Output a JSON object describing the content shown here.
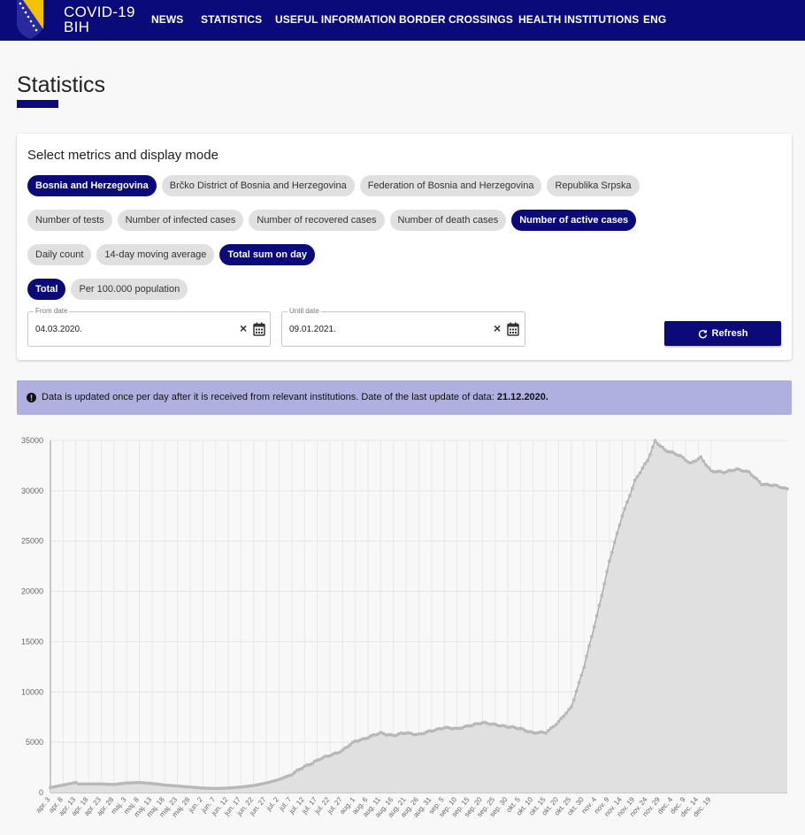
{
  "brand": {
    "line1": "COVID-19",
    "line2": "BIH"
  },
  "nav": [
    "NEWS",
    "STATISTICS",
    "USEFUL INFORMATION",
    "BORDER CROSSINGS",
    "HEALTH INSTITUTIONS",
    "ENG"
  ],
  "page": {
    "title": "Statistics"
  },
  "filters": {
    "title": "Select metrics and display mode",
    "regions": [
      {
        "label": "Bosnia and Herzegovina",
        "active": true
      },
      {
        "label": "Brčko District of Bosnia and Herzegovina",
        "active": false
      },
      {
        "label": "Federation of Bosnia and Herzegovina",
        "active": false
      },
      {
        "label": "Republika Srpska",
        "active": false
      }
    ],
    "metrics": [
      {
        "label": "Number of tests",
        "active": false
      },
      {
        "label": "Number of infected cases",
        "active": false
      },
      {
        "label": "Number of recovered cases",
        "active": false
      },
      {
        "label": "Number of death cases",
        "active": false
      },
      {
        "label": "Number of active cases",
        "active": true
      }
    ],
    "modes": [
      {
        "label": "Daily count",
        "active": false
      },
      {
        "label": "14-day moving average",
        "active": false
      },
      {
        "label": "Total sum on day",
        "active": true
      }
    ],
    "scales": [
      {
        "label": "Total",
        "active": true
      },
      {
        "label": "Per 100.000 population",
        "active": false
      }
    ],
    "from": {
      "label": "From date",
      "value": "04.03.2020."
    },
    "until": {
      "label": "Until date",
      "value": "09.01.2021."
    },
    "refresh_label": "Refresh"
  },
  "notice": {
    "text": "Data is updated once per day after it is received from relevant institutions. Date of the last update of data: ",
    "date": "21.12.2020."
  },
  "colors": {
    "brand": "#0a0a7a",
    "notice": "#b0b0e0",
    "series_fill": "#e0e0e0",
    "series_line": "#a8a8a8"
  },
  "chart_data": {
    "type": "area",
    "series": [
      {
        "name": "",
        "values": []
      }
    ],
    "ylim": [
      0,
      35000
    ],
    "y_ticks": [
      0,
      5000,
      10000,
      15000,
      20000,
      25000,
      30000,
      35000
    ],
    "x_tick_labels": [
      "apr. 3",
      "apr. 8",
      "apr. 13",
      "apr. 18",
      "apr. 23",
      "apr. 28",
      "maj. 3",
      "maj. 8",
      "maj. 13",
      "maj. 18",
      "maj. 23",
      "maj. 28",
      "jun. 2",
      "jun. 7",
      "jun. 12",
      "jun. 17",
      "jun. 22",
      "jun. 27",
      "jul. 2",
      "jul. 7",
      "jul. 12",
      "jul. 17",
      "jul. 22",
      "jul. 27",
      "aug. 1",
      "aug. 6",
      "aug. 11",
      "aug. 16",
      "aug. 21",
      "aug. 26",
      "aug. 31",
      "sep. 5",
      "sep. 10",
      "sep. 15",
      "sep. 20",
      "sep. 25",
      "sep. 30",
      "okt. 5",
      "okt. 10",
      "okt. 15",
      "okt. 20",
      "okt. 25",
      "okt. 30",
      "nov. 4",
      "nov. 9",
      "nov. 14",
      "nov. 19",
      "nov. 24",
      "nov. 29",
      "dec. 4",
      "dec. 9",
      "dec. 14",
      "dec. 19"
    ],
    "points_per_tick": 5,
    "anchors": [
      [
        0,
        500
      ],
      [
        5,
        750
      ],
      [
        10,
        1000
      ],
      [
        11,
        850
      ],
      [
        15,
        850
      ],
      [
        20,
        850
      ],
      [
        25,
        800
      ],
      [
        30,
        950
      ],
      [
        35,
        1000
      ],
      [
        40,
        900
      ],
      [
        45,
        750
      ],
      [
        50,
        650
      ],
      [
        55,
        550
      ],
      [
        60,
        450
      ],
      [
        65,
        400
      ],
      [
        70,
        450
      ],
      [
        75,
        550
      ],
      [
        80,
        700
      ],
      [
        85,
        950
      ],
      [
        90,
        1300
      ],
      [
        95,
        1800
      ],
      [
        100,
        2600
      ],
      [
        105,
        3200
      ],
      [
        110,
        3700
      ],
      [
        115,
        4200
      ],
      [
        120,
        5100
      ],
      [
        125,
        5500
      ],
      [
        130,
        5900
      ],
      [
        135,
        5700
      ],
      [
        140,
        5900
      ],
      [
        145,
        5800
      ],
      [
        150,
        6100
      ],
      [
        155,
        6500
      ],
      [
        160,
        6300
      ],
      [
        165,
        6700
      ],
      [
        170,
        6900
      ],
      [
        175,
        6800
      ],
      [
        180,
        6500
      ],
      [
        185,
        6400
      ],
      [
        190,
        5900
      ],
      [
        195,
        6000
      ],
      [
        200,
        7000
      ],
      [
        205,
        8500
      ],
      [
        210,
        12500
      ],
      [
        215,
        17500
      ],
      [
        220,
        23000
      ],
      [
        225,
        27500
      ],
      [
        230,
        31000
      ],
      [
        235,
        33000
      ],
      [
        238,
        35000
      ],
      [
        242,
        34000
      ],
      [
        248,
        33500
      ],
      [
        252,
        32700
      ],
      [
        256,
        33300
      ],
      [
        260,
        32000
      ],
      [
        265,
        31800
      ],
      [
        270,
        32200
      ],
      [
        275,
        31800
      ],
      [
        280,
        30700
      ],
      [
        285,
        30500
      ],
      [
        290,
        30200
      ]
    ]
  }
}
